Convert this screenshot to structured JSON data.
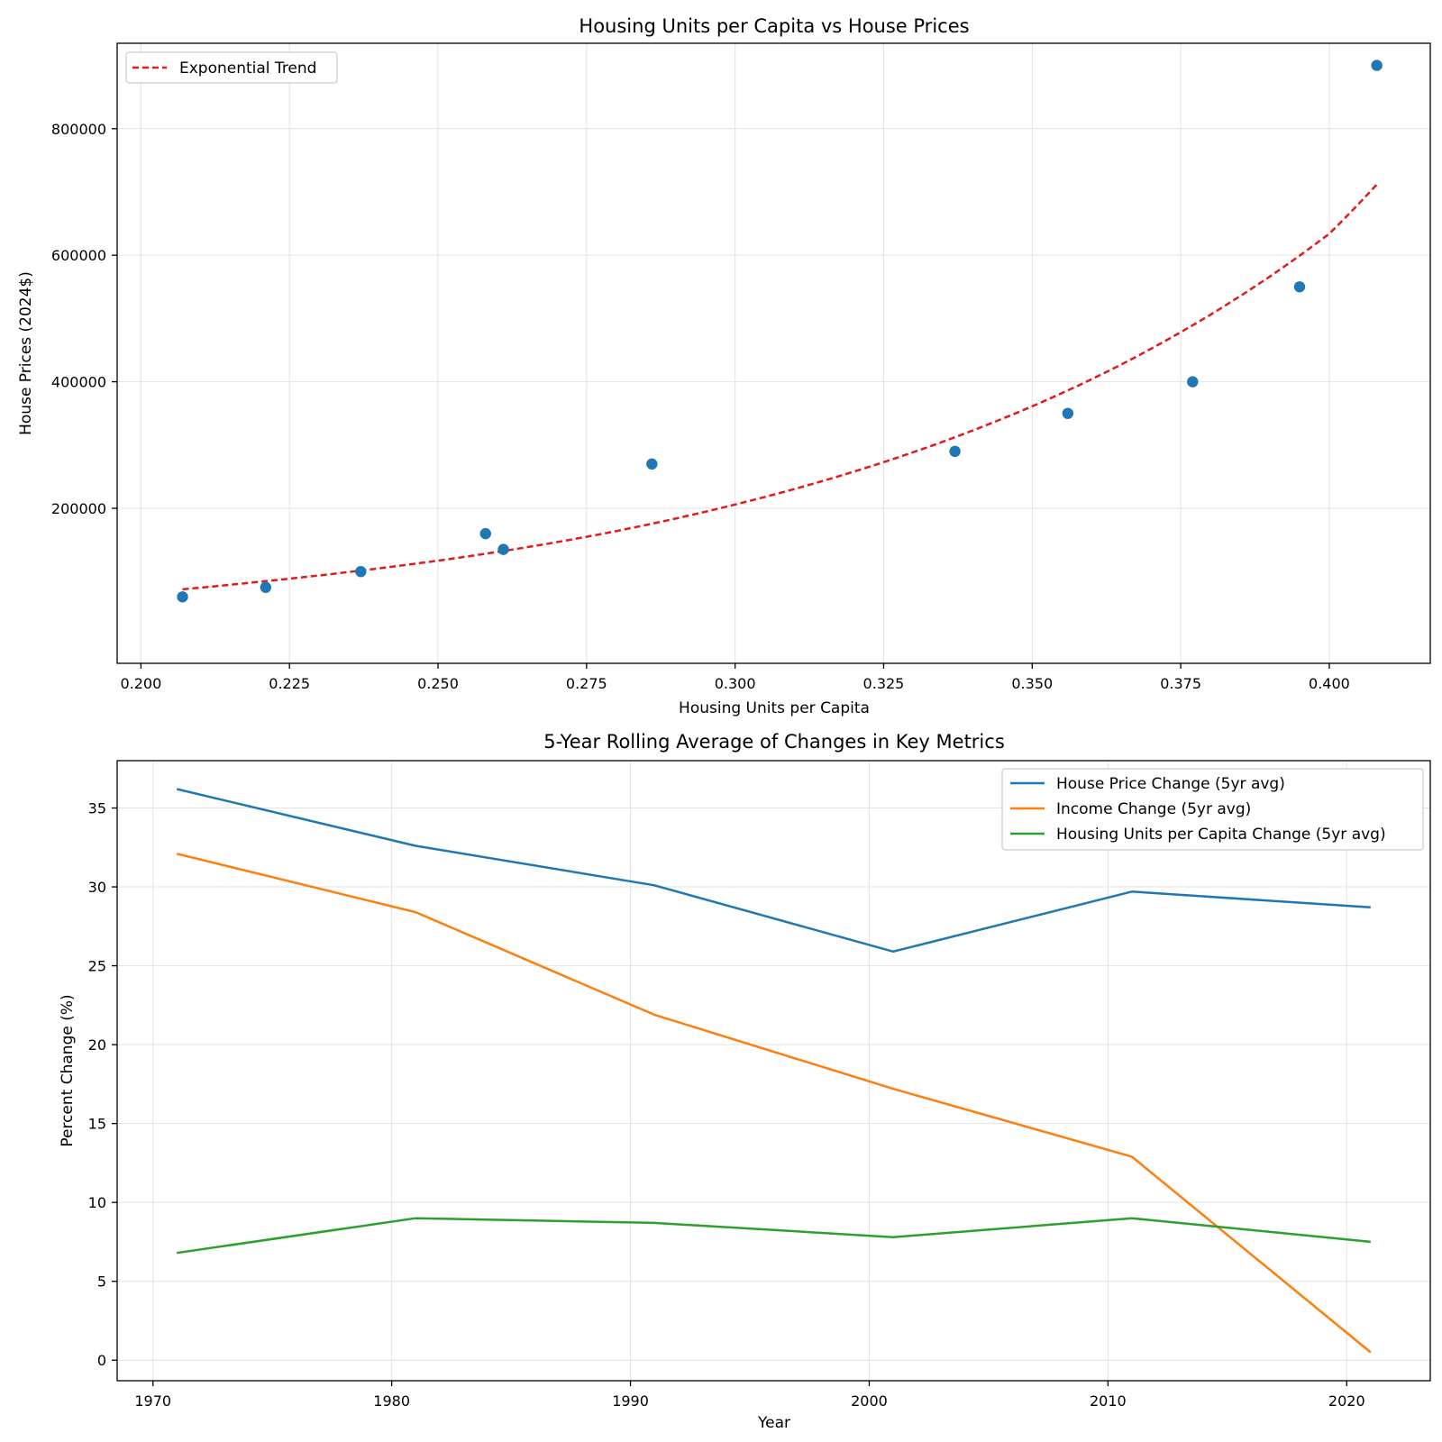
{
  "chart_data": [
    {
      "type": "scatter",
      "title": "Housing Units per Capita vs House Prices",
      "xlabel": "Housing Units per Capita",
      "ylabel": "House Prices (2024$)",
      "xlim": [
        0.196,
        0.417
      ],
      "ylim": [
        -45000,
        935000
      ],
      "xticks": [
        0.2,
        0.225,
        0.25,
        0.275,
        0.3,
        0.325,
        0.35,
        0.375,
        0.4
      ],
      "xtick_labels": [
        "0.200",
        "0.225",
        "0.250",
        "0.275",
        "0.300",
        "0.325",
        "0.350",
        "0.375",
        "0.400"
      ],
      "yticks": [
        200000,
        400000,
        600000,
        800000
      ],
      "ytick_labels": [
        "200000",
        "400000",
        "600000",
        "800000"
      ],
      "grid": true,
      "legend_position": "top-left",
      "points": [
        {
          "x": 0.207,
          "y": 60000
        },
        {
          "x": 0.221,
          "y": 75000
        },
        {
          "x": 0.237,
          "y": 100000
        },
        {
          "x": 0.258,
          "y": 160000
        },
        {
          "x": 0.261,
          "y": 135000
        },
        {
          "x": 0.286,
          "y": 270000
        },
        {
          "x": 0.337,
          "y": 290000
        },
        {
          "x": 0.356,
          "y": 350000
        },
        {
          "x": 0.377,
          "y": 400000
        },
        {
          "x": 0.395,
          "y": 550000
        },
        {
          "x": 0.408,
          "y": 900000
        }
      ],
      "trend": {
        "name": "Exponential Trend",
        "x": [
          0.207,
          0.22,
          0.24,
          0.26,
          0.28,
          0.3,
          0.32,
          0.34,
          0.36,
          0.38,
          0.4,
          0.408
        ],
        "y": [
          72000,
          84000,
          105000,
          131000,
          164000,
          206000,
          258000,
          323000,
          404000,
          506000,
          634000,
          712000
        ]
      },
      "point_color": "#1f77b4",
      "trend_color": "#e31a1c"
    },
    {
      "type": "line",
      "title": "5-Year Rolling Average of Changes in Key Metrics",
      "xlabel": "Year",
      "ylabel": "Percent Change (%)",
      "xlim": [
        1968.5,
        2023.5
      ],
      "ylim": [
        -1.3,
        38
      ],
      "xticks": [
        1970,
        1980,
        1990,
        2000,
        2010,
        2020
      ],
      "xtick_labels": [
        "1970",
        "1980",
        "1990",
        "2000",
        "2010",
        "2020"
      ],
      "yticks": [
        0,
        5,
        10,
        15,
        20,
        25,
        30,
        35
      ],
      "ytick_labels": [
        "0",
        "5",
        "10",
        "15",
        "20",
        "25",
        "30",
        "35"
      ],
      "grid": true,
      "legend_position": "top-right",
      "x": [
        1971,
        1981,
        1991,
        2001,
        2011,
        2021
      ],
      "series": [
        {
          "name": "House Price Change (5yr avg)",
          "color": "#1f77b4",
          "values": [
            36.2,
            32.6,
            30.1,
            25.9,
            29.7,
            28.7
          ]
        },
        {
          "name": "Income Change (5yr avg)",
          "color": "#ff7f0e",
          "values": [
            32.1,
            28.4,
            21.9,
            17.2,
            12.9,
            0.5
          ]
        },
        {
          "name": "Housing Units per Capita Change (5yr avg)",
          "color": "#2ca02c",
          "values": [
            6.8,
            9.0,
            8.7,
            7.8,
            9.0,
            7.5
          ]
        }
      ]
    }
  ]
}
